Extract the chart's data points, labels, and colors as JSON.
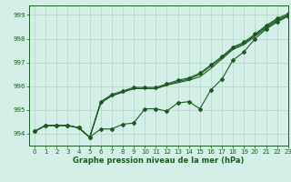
{
  "title": "Graphe pression niveau de la mer (hPa)",
  "bg_color": "#d4eee8",
  "grid_color": "#b8d8cc",
  "line_color": "#1a5c20",
  "xlim": [
    -0.5,
    23
  ],
  "ylim": [
    993.5,
    999.4
  ],
  "yticks": [
    994,
    995,
    996,
    997,
    998,
    999
  ],
  "xticks": [
    0,
    1,
    2,
    3,
    4,
    5,
    6,
    7,
    8,
    9,
    10,
    11,
    12,
    13,
    14,
    15,
    16,
    17,
    18,
    19,
    20,
    21,
    22,
    23
  ],
  "series_main": [
    994.1,
    994.35,
    994.35,
    994.35,
    994.25,
    993.85,
    994.2,
    994.2,
    994.4,
    994.45,
    995.05,
    995.05,
    994.95,
    995.3,
    995.35,
    995.05,
    995.85,
    996.3,
    997.1,
    997.45,
    998.0,
    998.4,
    998.7,
    998.95
  ],
  "series_upper1": [
    994.1,
    994.35,
    994.35,
    994.35,
    994.25,
    993.85,
    995.3,
    995.6,
    995.75,
    995.9,
    995.9,
    995.9,
    996.05,
    996.15,
    996.25,
    996.4,
    996.75,
    997.15,
    997.55,
    997.75,
    998.1,
    998.45,
    998.75,
    998.95
  ],
  "series_upper2": [
    994.1,
    994.35,
    994.35,
    994.35,
    994.25,
    993.85,
    995.3,
    995.6,
    995.75,
    995.9,
    995.9,
    995.9,
    996.05,
    996.2,
    996.3,
    996.5,
    996.85,
    997.2,
    997.6,
    997.8,
    998.15,
    998.5,
    998.8,
    999.0
  ],
  "series_top": [
    994.1,
    994.35,
    994.35,
    994.35,
    994.25,
    993.85,
    995.35,
    995.65,
    995.8,
    995.95,
    995.95,
    995.95,
    996.1,
    996.25,
    996.35,
    996.55,
    996.9,
    997.25,
    997.65,
    997.85,
    998.2,
    998.55,
    998.85,
    999.05
  ]
}
